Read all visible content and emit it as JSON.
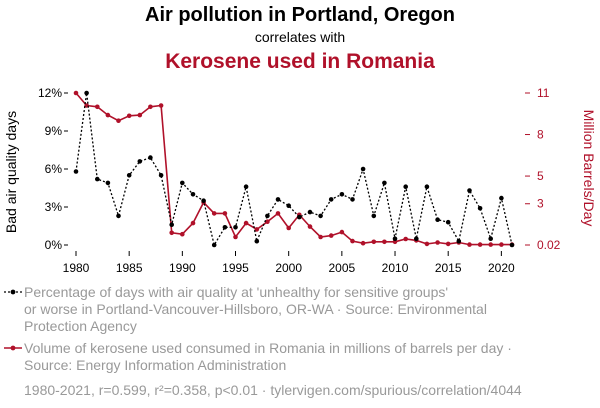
{
  "header": {
    "title": "Air pollution in Portland, Oregon",
    "subtitle": "correlates with",
    "title2": "Kerosene used in Romania"
  },
  "chart_data": {
    "type": "line",
    "x": [
      1980,
      1981,
      1982,
      1983,
      1984,
      1985,
      1986,
      1987,
      1988,
      1989,
      1990,
      1991,
      1992,
      1993,
      1994,
      1995,
      1996,
      1997,
      1998,
      1999,
      2000,
      2001,
      2002,
      2003,
      2004,
      2005,
      2006,
      2007,
      2008,
      2009,
      2010,
      2011,
      2012,
      2013,
      2014,
      2015,
      2016,
      2017,
      2018,
      2019,
      2020,
      2021
    ],
    "xticks": [
      1980,
      1985,
      1990,
      1995,
      2000,
      2005,
      2010,
      2015,
      2020
    ],
    "series": [
      {
        "name": "Percentage of days with air quality at 'unhealthy for sensitive groups' or worse in Portland-Vancouver-Hillsboro, OR-WA",
        "axis": "left",
        "color": "#000000",
        "style": "dotted",
        "values": [
          5.8,
          12.0,
          5.2,
          4.9,
          2.3,
          5.5,
          6.6,
          6.9,
          5.5,
          1.6,
          4.9,
          4.0,
          3.5,
          0.0,
          1.4,
          1.4,
          4.6,
          0.3,
          2.3,
          3.6,
          3.1,
          2.2,
          2.6,
          2.3,
          3.6,
          4.0,
          3.6,
          6.0,
          2.3,
          4.9,
          0.5,
          4.6,
          0.5,
          4.6,
          2.0,
          1.8,
          0.3,
          4.3,
          2.9,
          0.5,
          3.7,
          0.0
        ]
      },
      {
        "name": "Volume of kerosene used consumed in Romania in millions of barrels per day",
        "axis": "right",
        "color": "#b0112a",
        "style": "solid",
        "values": [
          11.0,
          10.1,
          10.0,
          9.4,
          9.0,
          9.35,
          9.4,
          10.0,
          10.1,
          0.9,
          0.8,
          1.6,
          3.1,
          2.3,
          2.3,
          0.6,
          1.6,
          1.15,
          1.7,
          2.3,
          1.25,
          2.2,
          1.35,
          0.6,
          0.7,
          0.95,
          0.3,
          0.15,
          0.25,
          0.25,
          0.25,
          0.45,
          0.35,
          0.1,
          0.2,
          0.1,
          0.2,
          0.05,
          0.05,
          0.05,
          0.05,
          0.05
        ]
      }
    ],
    "y_left": {
      "label": "Bad air quality days",
      "ticks": [
        "0%",
        "3%",
        "6%",
        "9%",
        "12%"
      ],
      "tick_values": [
        0,
        3,
        6,
        9,
        12
      ],
      "range": [
        0,
        12
      ]
    },
    "y_right": {
      "label": "Million Barrels/Day",
      "ticks": [
        "0.02",
        "3",
        "5",
        "8",
        "11"
      ],
      "tick_values": [
        0.02,
        3,
        5,
        8,
        11
      ],
      "range": [
        0.02,
        11
      ]
    },
    "legend": {
      "series1": [
        "Percentage of days with air quality at 'unhealthy for sensitive groups'",
        "or worse in Portland-Vancouver-Hillsboro, OR-WA · Source: Environmental",
        "Protection Agency"
      ],
      "series2": [
        "Volume of kerosene used consumed in Romania in millions of barrels per day ·",
        "Source: Energy Information Administration"
      ]
    },
    "footer": "1980-2021, r=0.599, r²=0.358, p<0.01 · tylervigen.com/spurious/correlation/4044"
  }
}
